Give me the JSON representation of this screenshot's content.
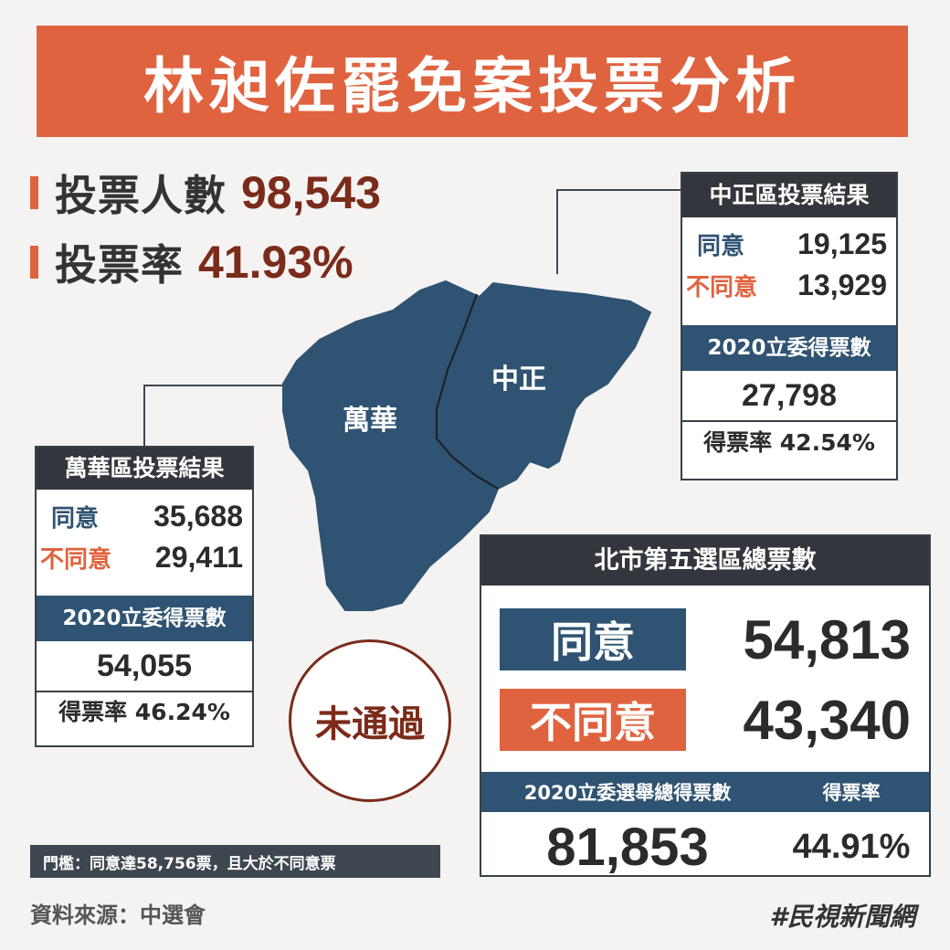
{
  "title": "林昶佐罷免案投票分析",
  "summary": {
    "voters_label": "投票人數",
    "voters_value": "98,543",
    "turnout_label": "投票率",
    "turnout_value": "41.93%"
  },
  "map": {
    "wanhua_label": "萬華",
    "zhongzheng_label": "中正"
  },
  "zhongzheng": {
    "header": "中正區投票結果",
    "agree_label": "同意",
    "agree_value": "19,125",
    "disagree_label": "不同意",
    "disagree_value": "13,929",
    "votes2020_header": "2020立委得票數",
    "votes2020_value": "27,798",
    "rate_text": "得票率 42.54%"
  },
  "wanhua": {
    "header": "萬華區投票結果",
    "agree_label": "同意",
    "agree_value": "35,688",
    "disagree_label": "不同意",
    "disagree_value": "29,411",
    "votes2020_header": "2020立委得票數",
    "votes2020_value": "54,055",
    "rate_text": "得票率 46.24%"
  },
  "total": {
    "header": "北市第五選區總票數",
    "agree_label": "同意",
    "agree_value": "54,813",
    "disagree_label": "不同意",
    "disagree_value": "43,340",
    "votes2020_label": "2020立委選舉總得票數",
    "rate_label": "得票率",
    "votes2020_value": "81,853",
    "rate_value": "44.91%"
  },
  "result": "未通過",
  "threshold": "門檻：同意達58,756票，且大於不同意票",
  "source": "資料來源：中選會",
  "hashtag": "#民視新聞網",
  "colors": {
    "accent_orange": "#e0633f",
    "map_blue": "#2f5372",
    "dark_red": "#7b2b1a",
    "dark_header": "#33373d"
  }
}
